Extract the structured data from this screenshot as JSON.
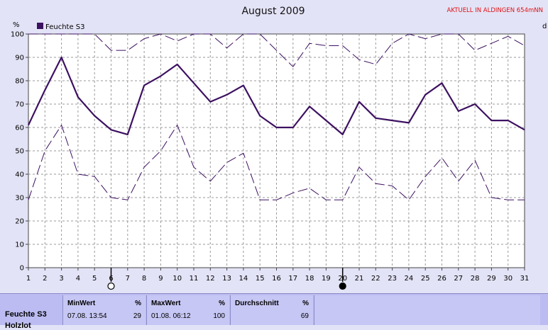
{
  "header": {
    "title": "August 2009",
    "note": "AKTUELL IN ALDINGEN 654mNN",
    "right_unit": "d"
  },
  "legend": {
    "label": "Feuchte S3",
    "color": "#3d1161"
  },
  "chart_data": {
    "type": "line",
    "title": "August 2009",
    "ylabel": "%",
    "ylim": [
      0,
      100
    ],
    "yticks": [
      0,
      10,
      20,
      30,
      40,
      50,
      60,
      70,
      80,
      90,
      100
    ],
    "x": [
      1,
      2,
      3,
      4,
      5,
      6,
      7,
      8,
      9,
      10,
      11,
      12,
      13,
      14,
      15,
      16,
      17,
      18,
      19,
      20,
      21,
      22,
      23,
      24,
      25,
      26,
      27,
      28,
      29,
      30,
      31
    ],
    "series": [
      {
        "name": "Feuchte S3",
        "style": "solid",
        "color": "#3d1161",
        "values": [
          61,
          76,
          90,
          73,
          65,
          59,
          57,
          78,
          82,
          87,
          79,
          71,
          74,
          78,
          65,
          60,
          60,
          69,
          63,
          57,
          71,
          64,
          63,
          62,
          74,
          79,
          67,
          70,
          63,
          63,
          59
        ]
      },
      {
        "style": "dashed-max",
        "color": "#3d1161",
        "values": [
          100,
          100,
          100,
          100,
          100,
          93,
          93,
          98,
          100,
          97,
          100,
          100,
          94,
          100,
          100,
          93,
          86,
          96,
          95,
          95,
          89,
          87,
          96,
          100,
          98,
          100,
          100,
          93,
          96,
          99,
          95
        ]
      },
      {
        "style": "dashed-min",
        "color": "#3d1161",
        "values": [
          29,
          50,
          61,
          40,
          39,
          30,
          29,
          43,
          50,
          61,
          43,
          37,
          45,
          49,
          29,
          29,
          32,
          34,
          29,
          29,
          43,
          36,
          35,
          29,
          39,
          47,
          37,
          46,
          30,
          29,
          29
        ]
      }
    ],
    "markers": [
      {
        "x": 6,
        "kind": "open-circle"
      },
      {
        "x": 20,
        "kind": "filled-circle"
      }
    ],
    "grid": true,
    "legend_position": "top-left"
  },
  "stats": {
    "series_label": "Feuchte S3",
    "series_label2": "Holzlot",
    "min": {
      "header": "MinWert",
      "unit": "%",
      "date": "07.08.  13:54",
      "value": "29"
    },
    "max": {
      "header": "MaxWert",
      "unit": "%",
      "date": "01.08.  06:12",
      "value": "100"
    },
    "avg": {
      "header": "Durchschnitt",
      "unit": "%",
      "value": "69"
    }
  }
}
